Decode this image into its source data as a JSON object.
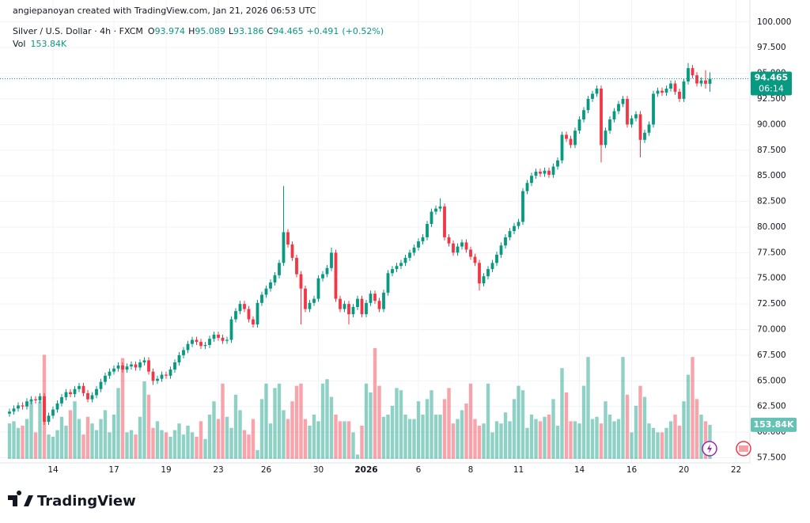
{
  "header": {
    "credit": "angiepanoyan created with TradingView.com, Jan 21, 2026 06:53 UTC"
  },
  "chart_data": {
    "type": "candlestick",
    "title": "Silver / U.S. Dollar · 4h · FXCM",
    "legend_labels": [
      "O",
      "H",
      "L",
      "C"
    ],
    "change": "+0.491",
    "change_pct": "(+0.52%)",
    "volume_title": "Vol",
    "volume_label": "153.84K",
    "countdown": "06:14",
    "up_color": "#089981",
    "down_color": "#f23645",
    "grid": true,
    "ylim": [
      57.0,
      100.6
    ],
    "yticks": [
      {
        "value": 100,
        "label": "100.000"
      },
      {
        "value": 97.5,
        "label": "97.500"
      },
      {
        "value": 95,
        "label": "95.000"
      },
      {
        "value": 92.5,
        "label": "92.500"
      },
      {
        "value": 90,
        "label": "90.000"
      },
      {
        "value": 87.5,
        "label": "87.500"
      },
      {
        "value": 85,
        "label": "85.000"
      },
      {
        "value": 82.5,
        "label": "82.500"
      },
      {
        "value": 80,
        "label": "80.000"
      },
      {
        "value": 77.5,
        "label": "77.500"
      },
      {
        "value": 75,
        "label": "75.000"
      },
      {
        "value": 72.5,
        "label": "72.500"
      },
      {
        "value": 70,
        "label": "70.000"
      },
      {
        "value": 67.5,
        "label": "67.500"
      },
      {
        "value": 65,
        "label": "65.000"
      },
      {
        "value": 62.5,
        "label": "62.500"
      },
      {
        "value": 60,
        "label": "60.000"
      },
      {
        "value": 57.5,
        "label": "57.500"
      }
    ],
    "xticks": [
      {
        "value": 10,
        "label": "14"
      },
      {
        "value": 24,
        "label": "17"
      },
      {
        "value": 36,
        "label": "19"
      },
      {
        "value": 48,
        "label": "23"
      },
      {
        "value": 59,
        "label": "26"
      },
      {
        "value": 71,
        "label": "30"
      },
      {
        "value": 82,
        "label": "2026"
      },
      {
        "value": 94,
        "label": "6"
      },
      {
        "value": 106,
        "label": "8"
      },
      {
        "value": 117,
        "label": "11"
      },
      {
        "value": 131,
        "label": "14"
      },
      {
        "value": 143,
        "label": "16"
      },
      {
        "value": 155,
        "label": "20"
      },
      {
        "value": 167,
        "label": "22"
      }
    ],
    "open": [
      61.8,
      62.0,
      62.3,
      62.6,
      62.5,
      63.0,
      63.2,
      63.1,
      63.5,
      61.0,
      61.6,
      62.2,
      62.8,
      63.4,
      63.9,
      63.7,
      64.2,
      64.5,
      63.8,
      63.2,
      63.6,
      64.2,
      64.9,
      65.5,
      65.9,
      66.2,
      66.5,
      66.1,
      66.4,
      66.6,
      66.3,
      66.8,
      67.0,
      65.9,
      65.0,
      65.2,
      65.6,
      65.5,
      66.1,
      66.8,
      67.5,
      68.0,
      68.6,
      69.0,
      68.8,
      68.4,
      68.5,
      69.1,
      69.5,
      69.2,
      68.9,
      69.0,
      71.0,
      71.8,
      72.5,
      72.0,
      71.0,
      70.5,
      72.6,
      73.4,
      74.0,
      74.6,
      75.3,
      76.5,
      79.5,
      78.3,
      77.0,
      75.4,
      74.0,
      72.0,
      72.6,
      73.0,
      75.0,
      75.4,
      76.0,
      77.5,
      73.0,
      72.0,
      72.5,
      71.5,
      72.2,
      73.0,
      71.5,
      72.6,
      73.5,
      72.8,
      72.0,
      73.6,
      75.5,
      75.9,
      76.2,
      76.5,
      77.0,
      77.5,
      78.0,
      78.6,
      79.0,
      80.3,
      81.5,
      81.8,
      82.0,
      79.0,
      78.4,
      77.5,
      78.1,
      78.5,
      77.8,
      77.1,
      76.5,
      74.5,
      75.2,
      75.9,
      76.5,
      77.3,
      78.2,
      79.0,
      79.6,
      80.1,
      80.5,
      83.5,
      84.3,
      85.0,
      85.4,
      85.2,
      85.5,
      85.1,
      85.9,
      86.5,
      89.0,
      88.6,
      88.0,
      89.4,
      90.5,
      91.4,
      92.5,
      93.0,
      93.5,
      88.0,
      89.4,
      90.5,
      91.3,
      92.0,
      92.5,
      90.0,
      90.6,
      91.0,
      88.5,
      89.2,
      90.0,
      93.0,
      93.3,
      93.1,
      93.5,
      94.0,
      93.2,
      92.5,
      94.2,
      95.5,
      94.8,
      94.0,
      94.3,
      93.974
    ],
    "high": [
      62.3,
      62.6,
      62.9,
      62.9,
      63.3,
      63.5,
      63.5,
      63.8,
      63.8,
      61.9,
      62.5,
      63.1,
      63.7,
      64.2,
      64.2,
      64.5,
      64.8,
      64.8,
      64.1,
      63.9,
      64.5,
      65.2,
      65.8,
      66.2,
      66.5,
      66.8,
      66.8,
      66.7,
      66.9,
      66.9,
      67.1,
      67.3,
      67.3,
      66.2,
      65.5,
      65.9,
      65.9,
      66.4,
      67.1,
      67.8,
      68.3,
      68.9,
      69.3,
      69.3,
      69.1,
      68.8,
      69.4,
      69.8,
      69.8,
      69.5,
      69.3,
      71.3,
      72.1,
      72.8,
      72.8,
      72.3,
      71.3,
      72.9,
      73.7,
      74.3,
      74.9,
      75.6,
      76.8,
      84.0,
      79.8,
      78.6,
      77.3,
      75.7,
      74.3,
      72.9,
      73.3,
      75.3,
      75.7,
      76.3,
      78.0,
      77.8,
      73.3,
      72.8,
      72.8,
      72.5,
      73.3,
      73.3,
      72.9,
      73.8,
      73.8,
      73.1,
      73.9,
      75.8,
      76.2,
      76.5,
      76.8,
      77.3,
      77.8,
      78.3,
      78.9,
      79.3,
      80.6,
      81.8,
      82.1,
      82.8,
      82.3,
      79.3,
      78.7,
      78.4,
      78.8,
      78.8,
      78.1,
      77.4,
      76.8,
      75.5,
      76.2,
      76.8,
      77.6,
      78.5,
      79.3,
      79.9,
      80.4,
      80.8,
      83.8,
      84.6,
      85.3,
      85.7,
      85.7,
      85.8,
      85.8,
      86.2,
      86.8,
      89.3,
      89.3,
      88.9,
      89.7,
      90.8,
      91.7,
      92.8,
      93.3,
      93.8,
      93.8,
      89.7,
      90.8,
      91.6,
      92.3,
      92.8,
      92.8,
      90.9,
      91.3,
      91.3,
      89.5,
      90.3,
      93.3,
      93.6,
      93.6,
      93.8,
      94.3,
      94.3,
      93.5,
      94.5,
      96.0,
      95.8,
      95.1,
      94.6,
      95.3,
      95.089
    ],
    "low": [
      61.5,
      61.7,
      62.0,
      62.2,
      62.2,
      62.7,
      62.8,
      62.8,
      60.7,
      60.7,
      61.3,
      61.9,
      62.5,
      63.1,
      63.4,
      63.4,
      63.9,
      63.5,
      62.9,
      62.9,
      63.3,
      63.9,
      64.6,
      65.2,
      65.6,
      65.9,
      65.8,
      65.8,
      66.1,
      66.0,
      66.0,
      66.5,
      65.6,
      64.6,
      64.7,
      64.9,
      65.2,
      65.2,
      65.8,
      66.5,
      67.2,
      67.7,
      68.3,
      68.5,
      68.1,
      68.1,
      68.2,
      68.8,
      68.9,
      68.6,
      68.6,
      68.7,
      70.7,
      71.5,
      71.7,
      70.7,
      70.2,
      70.2,
      72.3,
      73.1,
      73.7,
      74.3,
      75.0,
      76.2,
      78.0,
      76.7,
      75.1,
      70.5,
      71.7,
      71.7,
      72.3,
      72.7,
      74.7,
      75.1,
      75.7,
      72.7,
      71.7,
      71.7,
      70.5,
      71.2,
      71.9,
      71.2,
      71.2,
      72.3,
      72.5,
      71.7,
      71.7,
      73.3,
      75.2,
      75.6,
      75.9,
      76.2,
      76.7,
      77.2,
      77.7,
      78.3,
      78.7,
      80.0,
      81.2,
      81.5,
      78.7,
      78.1,
      77.2,
      77.2,
      77.8,
      77.5,
      76.8,
      76.2,
      73.8,
      74.2,
      74.9,
      75.6,
      76.2,
      77.0,
      77.9,
      78.7,
      79.3,
      79.8,
      80.2,
      83.2,
      84.0,
      84.7,
      84.9,
      84.9,
      84.8,
      84.8,
      85.6,
      86.2,
      88.3,
      87.7,
      87.7,
      89.1,
      90.2,
      91.1,
      92.2,
      92.7,
      86.3,
      87.7,
      89.1,
      90.2,
      91.0,
      91.7,
      89.7,
      89.7,
      90.3,
      86.8,
      88.2,
      88.9,
      89.7,
      92.7,
      92.8,
      92.8,
      93.2,
      92.9,
      92.2,
      92.2,
      93.9,
      94.5,
      93.7,
      93.7,
      93.5,
      93.186
    ],
    "close": [
      62.0,
      62.3,
      62.6,
      62.5,
      63.0,
      63.2,
      63.1,
      63.5,
      61.0,
      61.6,
      62.2,
      62.8,
      63.4,
      63.9,
      63.7,
      64.2,
      64.5,
      63.8,
      63.2,
      63.6,
      64.2,
      64.9,
      65.5,
      65.9,
      66.2,
      66.5,
      66.1,
      66.4,
      66.6,
      66.3,
      66.8,
      67.0,
      65.9,
      65.0,
      65.2,
      65.6,
      65.5,
      66.1,
      66.8,
      67.5,
      68.0,
      68.6,
      69.0,
      68.8,
      68.4,
      68.5,
      69.1,
      69.5,
      69.2,
      68.9,
      69.0,
      71.0,
      71.8,
      72.5,
      72.0,
      71.0,
      70.5,
      72.6,
      73.4,
      74.0,
      74.6,
      75.3,
      76.5,
      79.5,
      78.3,
      77.0,
      75.4,
      74.0,
      72.0,
      72.6,
      73.0,
      75.0,
      75.4,
      76.0,
      77.5,
      73.0,
      72.0,
      72.5,
      71.5,
      72.2,
      73.0,
      71.5,
      72.6,
      73.5,
      72.8,
      72.0,
      73.6,
      75.5,
      75.9,
      76.2,
      76.5,
      77.0,
      77.5,
      78.0,
      78.6,
      79.0,
      80.3,
      81.5,
      81.8,
      82.0,
      79.0,
      78.4,
      77.5,
      78.1,
      78.5,
      77.8,
      77.1,
      76.5,
      74.5,
      75.2,
      75.9,
      76.5,
      77.3,
      78.2,
      79.0,
      79.6,
      80.1,
      80.5,
      83.5,
      84.3,
      85.0,
      85.4,
      85.2,
      85.5,
      85.1,
      85.9,
      86.5,
      89.0,
      88.6,
      88.0,
      89.4,
      90.5,
      91.4,
      92.5,
      93.0,
      93.5,
      88.0,
      89.4,
      90.5,
      91.3,
      92.0,
      92.5,
      90.0,
      90.6,
      91.0,
      88.5,
      89.2,
      90.0,
      93.0,
      93.3,
      93.1,
      93.5,
      94.0,
      93.2,
      92.5,
      94.2,
      95.5,
      94.8,
      94.0,
      94.3,
      93.974,
      94.465
    ],
    "volume": [
      160000,
      170000,
      140000,
      150000,
      180000,
      260000,
      120000,
      260000,
      470000,
      110000,
      100000,
      130000,
      190000,
      150000,
      220000,
      260000,
      180000,
      110000,
      190000,
      160000,
      130000,
      180000,
      220000,
      120000,
      200000,
      320000,
      455000,
      120000,
      130000,
      110000,
      190000,
      350000,
      290000,
      140000,
      170000,
      130000,
      120000,
      100000,
      130000,
      160000,
      110000,
      150000,
      120000,
      100000,
      170000,
      90000,
      200000,
      260000,
      180000,
      340000,
      190000,
      140000,
      290000,
      220000,
      130000,
      110000,
      180000,
      40000,
      270000,
      340000,
      160000,
      320000,
      340000,
      220000,
      180000,
      260000,
      330000,
      340000,
      180000,
      150000,
      200000,
      170000,
      340000,
      360000,
      280000,
      200000,
      170000,
      170000,
      170000,
      120000,
      20000,
      150000,
      340000,
      300000,
      500000,
      330000,
      190000,
      200000,
      240000,
      320000,
      310000,
      200000,
      180000,
      180000,
      260000,
      200000,
      270000,
      310000,
      200000,
      200000,
      270000,
      320000,
      160000,
      180000,
      220000,
      250000,
      340000,
      180000,
      150000,
      160000,
      340000,
      120000,
      170000,
      160000,
      210000,
      170000,
      270000,
      330000,
      310000,
      140000,
      200000,
      180000,
      170000,
      190000,
      200000,
      270000,
      150000,
      410000,
      300000,
      170000,
      170000,
      160000,
      330000,
      460000,
      180000,
      190000,
      160000,
      260000,
      200000,
      170000,
      180000,
      460000,
      290000,
      120000,
      240000,
      330000,
      280000,
      160000,
      140000,
      120000,
      120000,
      140000,
      170000,
      200000,
      150000,
      260000,
      380000,
      460000,
      270000,
      200000,
      170000,
      153840
    ]
  },
  "footer": {
    "brand": "TradingView"
  }
}
